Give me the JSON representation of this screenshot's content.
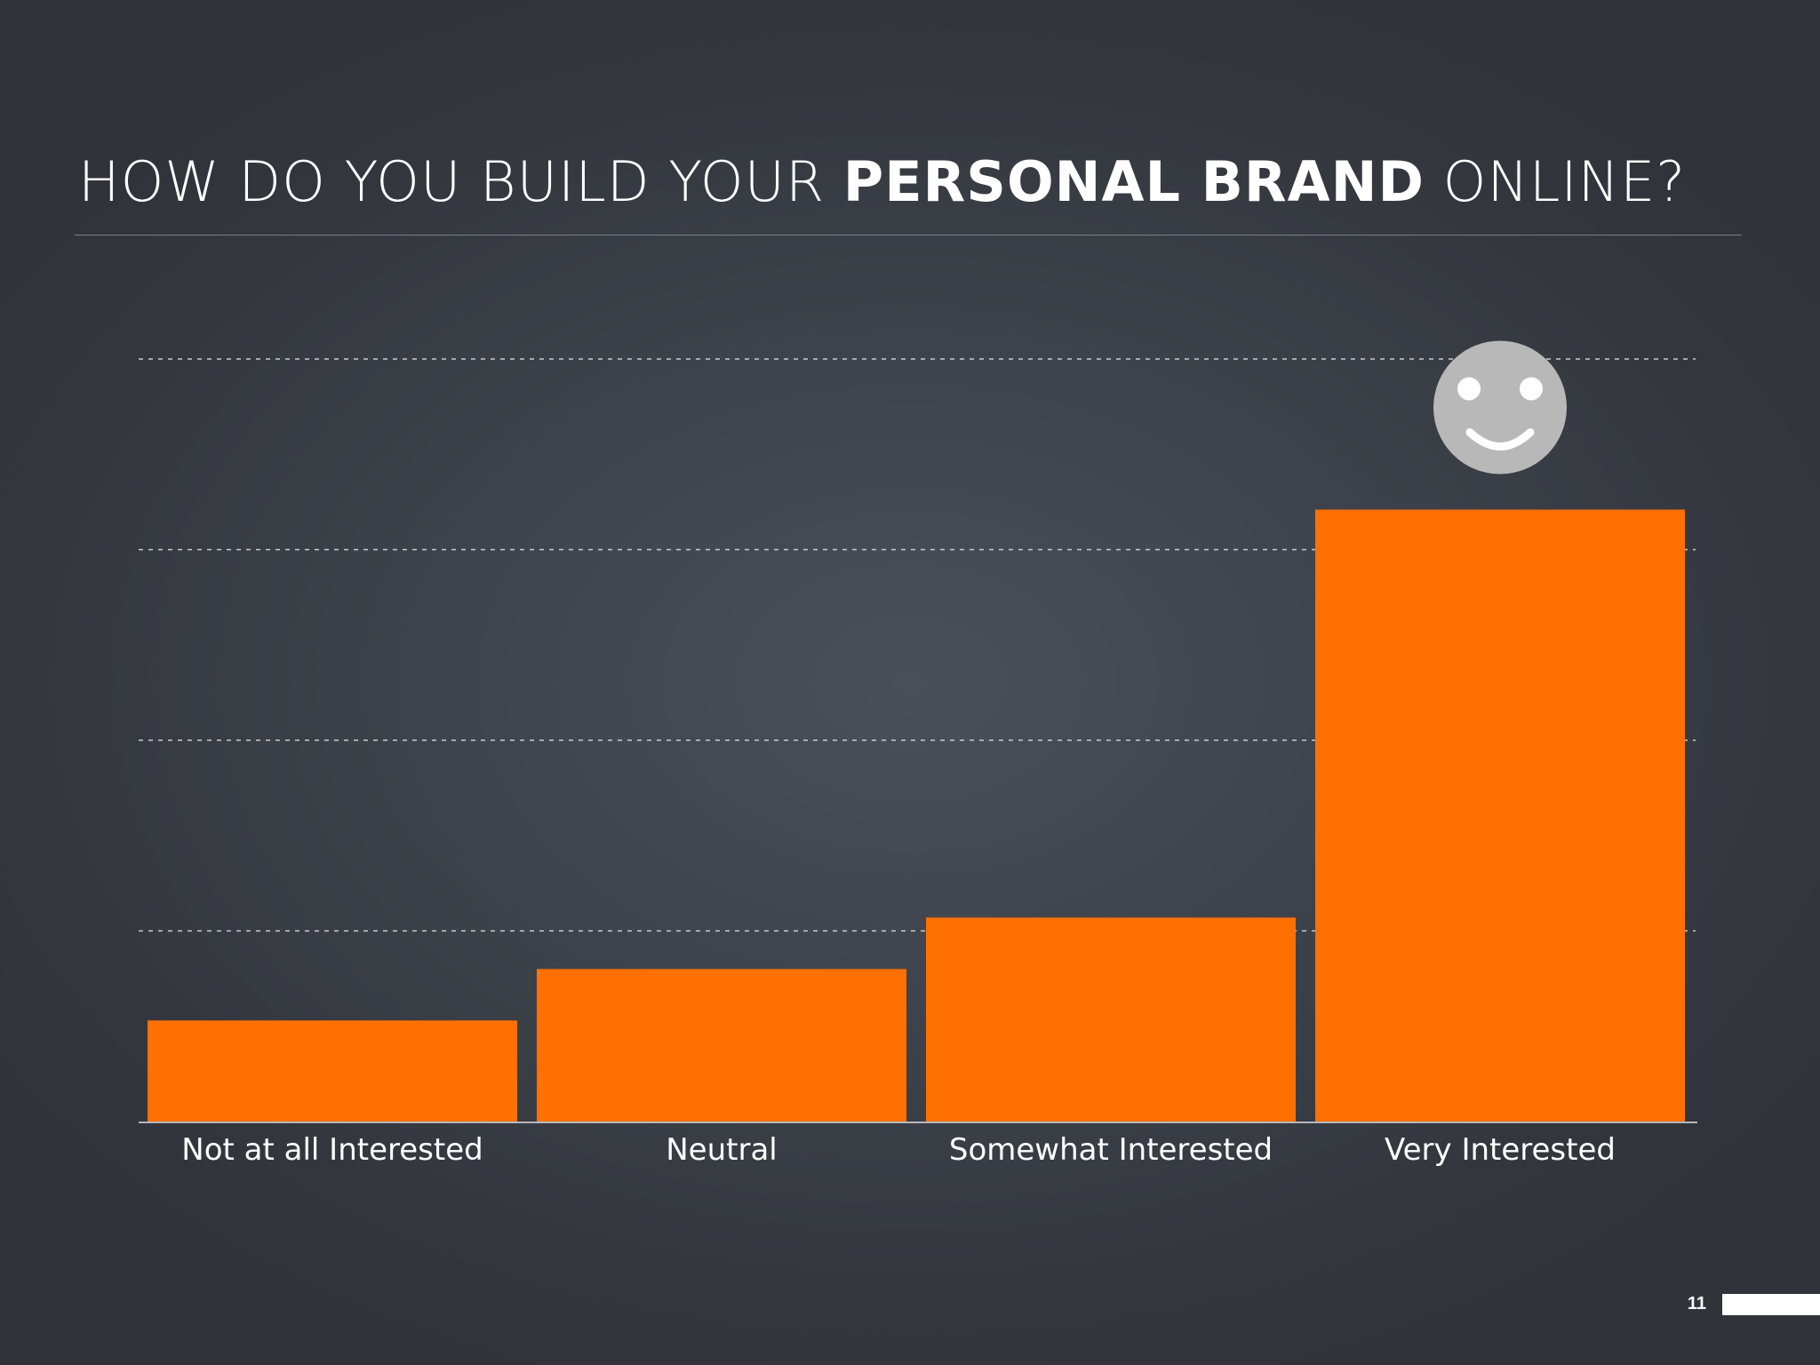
{
  "title": {
    "part1": "HOW DO YOU BUILD YOUR ",
    "bold": "PERSONAL BRAND",
    "part2": " ONLINE?"
  },
  "page_number": "11",
  "colors": {
    "bar": "#ff7003",
    "text": "#ffffff",
    "gridline": "#c9ccd1",
    "smiley": "#b8b8b8"
  },
  "icons": {
    "highlight": "smiley-face-icon"
  },
  "chart_data": {
    "type": "bar",
    "title": "HOW DO YOU BUILD YOUR PERSONAL BRAND ONLINE?",
    "categories": [
      "Not at all Interested",
      "Neutral",
      "Somewhat Interested",
      "Very Interested"
    ],
    "values": [
      0.53,
      0.8,
      1.07,
      3.21
    ],
    "ylim": [
      0,
      4
    ],
    "yticks": [
      1,
      2,
      3,
      4
    ],
    "y_tick_labels_shown": false,
    "grid": true,
    "xlabel": "",
    "ylabel": ""
  }
}
